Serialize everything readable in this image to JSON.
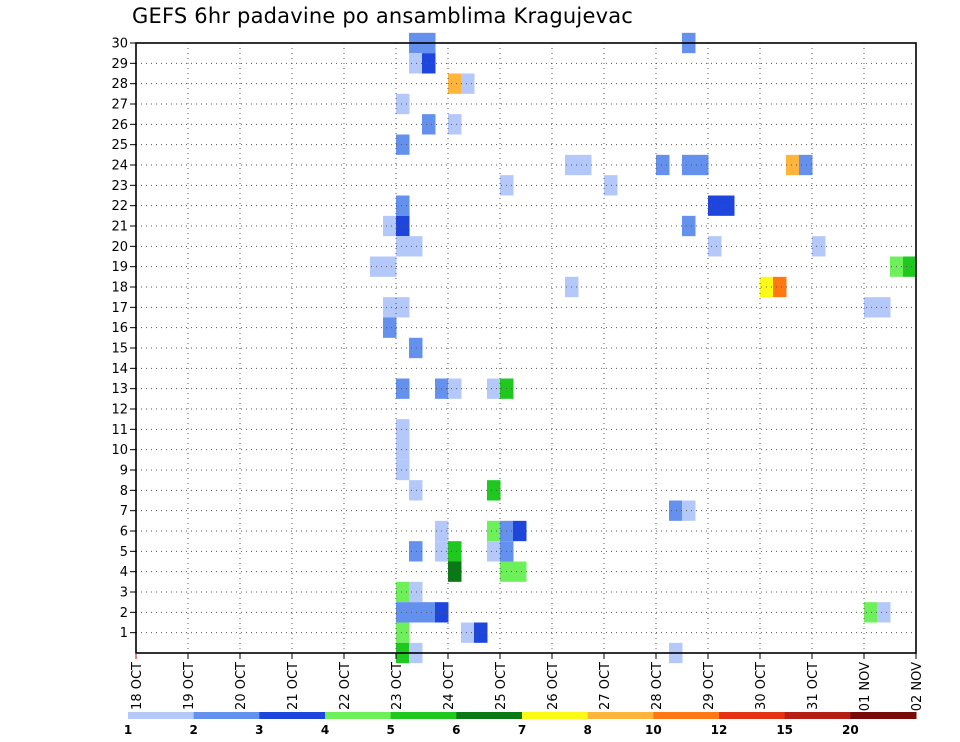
{
  "chart_data": {
    "type": "heatmap",
    "title": "GEFS 6hr padavine po ansamblima Kragujevac",
    "x_ticks": [
      "18 OCT",
      "19 OCT",
      "20 OCT",
      "21 OCT",
      "22 OCT",
      "23 OCT",
      "24 OCT",
      "25 OCT",
      "26 OCT",
      "27 OCT",
      "28 OCT",
      "29 OCT",
      "30 OCT",
      "31 OCT",
      "01 NOV",
      "02 NOV"
    ],
    "y_ticks": [
      "1",
      "2",
      "3",
      "4",
      "5",
      "6",
      "7",
      "8",
      "9",
      "10",
      "11",
      "12",
      "13",
      "14",
      "15",
      "16",
      "17",
      "18",
      "19",
      "20",
      "21",
      "22",
      "23",
      "24",
      "25",
      "26",
      "27",
      "28",
      "29",
      "30"
    ],
    "x_range_days": [
      0,
      15
    ],
    "y_range": [
      0,
      30
    ],
    "grid": true,
    "colorbar": {
      "labels": [
        "1",
        "2",
        "3",
        "4",
        "5",
        "6",
        "7",
        "8",
        "10",
        "12",
        "15",
        "20"
      ],
      "colors": [
        "#b4c8fa",
        "#6490ee",
        "#1e46dc",
        "#6ef05a",
        "#1ec81e",
        "#0a7814",
        "#fafa14",
        "#ffb43c",
        "#ff7814",
        "#e63214",
        "#b41e14",
        "#780a0a"
      ]
    },
    "cells": [
      {
        "x": 5.25,
        "y": 30,
        "c": 1
      },
      {
        "x": 5.5,
        "y": 30,
        "c": 1
      },
      {
        "x": 10.5,
        "y": 30,
        "c": 1
      },
      {
        "x": 5.25,
        "y": 29,
        "c": 0
      },
      {
        "x": 5.5,
        "y": 29,
        "c": 2
      },
      {
        "x": 6.0,
        "y": 28,
        "c": 7
      },
      {
        "x": 6.25,
        "y": 28,
        "c": 0
      },
      {
        "x": 5.0,
        "y": 27,
        "c": 0
      },
      {
        "x": 5.5,
        "y": 26,
        "c": 1
      },
      {
        "x": 6.0,
        "y": 26,
        "c": 0
      },
      {
        "x": 5.0,
        "y": 25,
        "c": 1
      },
      {
        "x": 8.25,
        "y": 24,
        "c": 0
      },
      {
        "x": 8.5,
        "y": 24,
        "c": 0
      },
      {
        "x": 10.0,
        "y": 24,
        "c": 1
      },
      {
        "x": 10.5,
        "y": 24,
        "c": 1
      },
      {
        "x": 10.75,
        "y": 24,
        "c": 1
      },
      {
        "x": 12.5,
        "y": 24,
        "c": 7
      },
      {
        "x": 12.75,
        "y": 24,
        "c": 1
      },
      {
        "x": 7.0,
        "y": 23,
        "c": 0
      },
      {
        "x": 9.0,
        "y": 23,
        "c": 0
      },
      {
        "x": 5.0,
        "y": 22,
        "c": 1
      },
      {
        "x": 11.0,
        "y": 22,
        "c": 2
      },
      {
        "x": 11.25,
        "y": 22,
        "c": 2
      },
      {
        "x": 4.75,
        "y": 21,
        "c": 0
      },
      {
        "x": 5.0,
        "y": 21,
        "c": 2
      },
      {
        "x": 10.5,
        "y": 21,
        "c": 1
      },
      {
        "x": 5.0,
        "y": 20,
        "c": 0
      },
      {
        "x": 5.25,
        "y": 20,
        "c": 0
      },
      {
        "x": 11.0,
        "y": 20,
        "c": 0
      },
      {
        "x": 13.0,
        "y": 20,
        "c": 0
      },
      {
        "x": 4.5,
        "y": 19,
        "c": 0
      },
      {
        "x": 4.75,
        "y": 19,
        "c": 0
      },
      {
        "x": 14.5,
        "y": 19,
        "c": 3
      },
      {
        "x": 14.75,
        "y": 19,
        "c": 4
      },
      {
        "x": 8.25,
        "y": 18,
        "c": 0
      },
      {
        "x": 12.0,
        "y": 18,
        "c": 6
      },
      {
        "x": 12.25,
        "y": 18,
        "c": 8
      },
      {
        "x": 4.75,
        "y": 17,
        "c": 0
      },
      {
        "x": 5.0,
        "y": 17,
        "c": 0
      },
      {
        "x": 14.0,
        "y": 17,
        "c": 0
      },
      {
        "x": 14.25,
        "y": 17,
        "c": 0
      },
      {
        "x": 4.75,
        "y": 16,
        "c": 1
      },
      {
        "x": 5.25,
        "y": 15,
        "c": 1
      },
      {
        "x": 5.0,
        "y": 13,
        "c": 1
      },
      {
        "x": 5.75,
        "y": 13,
        "c": 1
      },
      {
        "x": 6.0,
        "y": 13,
        "c": 0
      },
      {
        "x": 6.75,
        "y": 13,
        "c": 0
      },
      {
        "x": 7.0,
        "y": 13,
        "c": 4
      },
      {
        "x": 5.0,
        "y": 11,
        "c": 0
      },
      {
        "x": 5.0,
        "y": 10,
        "c": 0
      },
      {
        "x": 5.0,
        "y": 9,
        "c": 0
      },
      {
        "x": 5.25,
        "y": 8,
        "c": 0
      },
      {
        "x": 6.75,
        "y": 8,
        "c": 4
      },
      {
        "x": 10.25,
        "y": 7,
        "c": 1
      },
      {
        "x": 10.5,
        "y": 7,
        "c": 0
      },
      {
        "x": 5.75,
        "y": 6,
        "c": 0
      },
      {
        "x": 6.75,
        "y": 6,
        "c": 3
      },
      {
        "x": 7.0,
        "y": 6,
        "c": 1
      },
      {
        "x": 7.25,
        "y": 6,
        "c": 2
      },
      {
        "x": 5.25,
        "y": 5,
        "c": 1
      },
      {
        "x": 5.75,
        "y": 5,
        "c": 0
      },
      {
        "x": 6.0,
        "y": 5,
        "c": 4
      },
      {
        "x": 6.75,
        "y": 5,
        "c": 0
      },
      {
        "x": 7.0,
        "y": 5,
        "c": 1
      },
      {
        "x": 6.0,
        "y": 4,
        "c": 5
      },
      {
        "x": 7.0,
        "y": 4,
        "c": 3
      },
      {
        "x": 7.25,
        "y": 4,
        "c": 3
      },
      {
        "x": 5.0,
        "y": 3,
        "c": 3
      },
      {
        "x": 5.25,
        "y": 3,
        "c": 0
      },
      {
        "x": 5.0,
        "y": 2,
        "c": 1
      },
      {
        "x": 5.25,
        "y": 2,
        "c": 1
      },
      {
        "x": 5.5,
        "y": 2,
        "c": 1
      },
      {
        "x": 5.75,
        "y": 2,
        "c": 2
      },
      {
        "x": 14.0,
        "y": 2,
        "c": 3
      },
      {
        "x": 14.25,
        "y": 2,
        "c": 0
      },
      {
        "x": 5.0,
        "y": 1,
        "c": 3
      },
      {
        "x": 6.25,
        "y": 1,
        "c": 0
      },
      {
        "x": 6.5,
        "y": 1,
        "c": 2
      },
      {
        "x": 5.0,
        "y": 0,
        "c": 4
      },
      {
        "x": 5.25,
        "y": 0,
        "c": 0
      },
      {
        "x": 10.25,
        "y": 0,
        "c": 0
      }
    ]
  }
}
